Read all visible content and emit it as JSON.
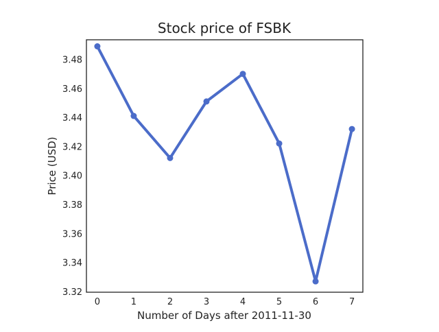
{
  "chart_data": {
    "type": "line",
    "title": "Stock price of FSBK",
    "xlabel": "Number of Days after 2011-11-30",
    "ylabel": "Price (USD)",
    "x": [
      0,
      1,
      2,
      3,
      4,
      5,
      6,
      7
    ],
    "x_ticks": [
      "0",
      "1",
      "2",
      "3",
      "4",
      "5",
      "6",
      "7"
    ],
    "y_ticks": [
      "3.32",
      "3.34",
      "3.36",
      "3.38",
      "3.40",
      "3.42",
      "3.44",
      "3.46",
      "3.48"
    ],
    "xlim": [
      -0.3,
      7.3
    ],
    "ylim": [
      3.3195,
      3.4935
    ],
    "grid": false,
    "series": [
      {
        "values": [
          3.489,
          3.441,
          3.412,
          3.451,
          3.47,
          3.422,
          3.327,
          3.432
        ]
      }
    ],
    "line_color": "#4b6cc9"
  }
}
